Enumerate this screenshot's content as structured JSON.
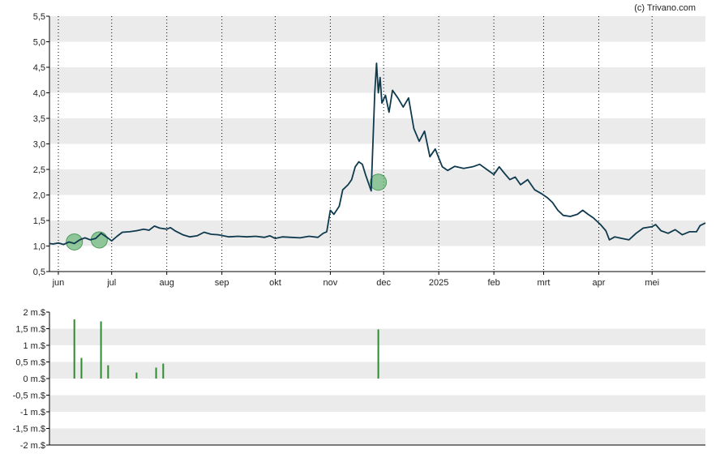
{
  "copyright": "(c) Trivano.com",
  "colors": {
    "band": "#ebebeb",
    "price_line": "#0f3a4e",
    "marker": "#6fba7d",
    "volume_bar": "#2e8b2e",
    "axis": "#000000",
    "month_grid": "#000000"
  },
  "chart_data": [
    {
      "type": "line",
      "name": "price",
      "ylim": [
        0.5,
        5.5
      ],
      "y_ticks": [
        0.5,
        1.0,
        1.5,
        2.0,
        2.5,
        3.0,
        3.5,
        4.0,
        4.5,
        5.0,
        5.5
      ],
      "y_tick_labels": [
        "0,5",
        "1,0",
        "1,5",
        "2,0",
        "2,5",
        "3,0",
        "3,5",
        "4,0",
        "4,5",
        "5,0",
        "5,5"
      ],
      "x_start": "2024-05-27",
      "x_end": "2025-05-31",
      "x_ticks": [
        "2024-06-01",
        "2024-07-01",
        "2024-08-01",
        "2024-09-01",
        "2024-10-01",
        "2024-11-01",
        "2024-12-01",
        "2025-01-01",
        "2025-02-01",
        "2025-03-01",
        "2025-04-01",
        "2025-05-01"
      ],
      "x_tick_labels": [
        "jun",
        "jul",
        "aug",
        "sep",
        "okt",
        "nov",
        "dec",
        "2025",
        "feb",
        "mrt",
        "apr",
        "mei"
      ],
      "grid": "alternating horizontal bands, dotted vertical month lines",
      "points": [
        [
          "2024-05-27",
          1.05
        ],
        [
          "2024-05-29",
          1.04
        ],
        [
          "2024-06-01",
          1.06
        ],
        [
          "2024-06-04",
          1.03
        ],
        [
          "2024-06-07",
          1.08
        ],
        [
          "2024-06-10",
          1.05
        ],
        [
          "2024-06-13",
          1.12
        ],
        [
          "2024-06-16",
          1.16
        ],
        [
          "2024-06-19",
          1.12
        ],
        [
          "2024-06-22",
          1.15
        ],
        [
          "2024-06-25",
          1.25
        ],
        [
          "2024-06-28",
          1.18
        ],
        [
          "2024-07-01",
          1.1
        ],
        [
          "2024-07-04",
          1.19
        ],
        [
          "2024-07-07",
          1.27
        ],
        [
          "2024-07-11",
          1.28
        ],
        [
          "2024-07-15",
          1.3
        ],
        [
          "2024-07-19",
          1.33
        ],
        [
          "2024-07-22",
          1.31
        ],
        [
          "2024-07-25",
          1.39
        ],
        [
          "2024-07-28",
          1.35
        ],
        [
          "2024-08-01",
          1.33
        ],
        [
          "2024-08-03",
          1.36
        ],
        [
          "2024-08-06",
          1.29
        ],
        [
          "2024-08-10",
          1.22
        ],
        [
          "2024-08-14",
          1.18
        ],
        [
          "2024-08-18",
          1.2
        ],
        [
          "2024-08-22",
          1.27
        ],
        [
          "2024-08-26",
          1.23
        ],
        [
          "2024-08-30",
          1.22
        ],
        [
          "2024-09-05",
          1.18
        ],
        [
          "2024-09-10",
          1.19
        ],
        [
          "2024-09-15",
          1.18
        ],
        [
          "2024-09-20",
          1.19
        ],
        [
          "2024-09-25",
          1.17
        ],
        [
          "2024-09-28",
          1.2
        ],
        [
          "2024-10-01",
          1.15
        ],
        [
          "2024-10-05",
          1.18
        ],
        [
          "2024-10-10",
          1.17
        ],
        [
          "2024-10-15",
          1.16
        ],
        [
          "2024-10-20",
          1.19
        ],
        [
          "2024-10-25",
          1.17
        ],
        [
          "2024-10-28",
          1.25
        ],
        [
          "2024-10-30",
          1.28
        ],
        [
          "2024-11-01",
          1.7
        ],
        [
          "2024-11-03",
          1.62
        ],
        [
          "2024-11-06",
          1.78
        ],
        [
          "2024-11-08",
          2.1
        ],
        [
          "2024-11-11",
          2.2
        ],
        [
          "2024-11-13",
          2.3
        ],
        [
          "2024-11-15",
          2.55
        ],
        [
          "2024-11-17",
          2.65
        ],
        [
          "2024-11-19",
          2.6
        ],
        [
          "2024-11-21",
          2.38
        ],
        [
          "2024-11-24",
          2.08
        ],
        [
          "2024-11-26",
          4.0
        ],
        [
          "2024-11-27",
          4.58
        ],
        [
          "2024-11-28",
          4.0
        ],
        [
          "2024-11-29",
          4.3
        ],
        [
          "2024-11-30",
          3.8
        ],
        [
          "2024-12-02",
          3.95
        ],
        [
          "2024-12-04",
          3.62
        ],
        [
          "2024-12-06",
          4.05
        ],
        [
          "2024-12-09",
          3.9
        ],
        [
          "2024-12-12",
          3.72
        ],
        [
          "2024-12-15",
          3.9
        ],
        [
          "2024-12-18",
          3.3
        ],
        [
          "2024-12-21",
          3.05
        ],
        [
          "2024-12-24",
          3.25
        ],
        [
          "2024-12-27",
          2.75
        ],
        [
          "2024-12-30",
          2.9
        ],
        [
          "2025-01-03",
          2.55
        ],
        [
          "2025-01-06",
          2.48
        ],
        [
          "2025-01-10",
          2.56
        ],
        [
          "2025-01-15",
          2.52
        ],
        [
          "2025-01-20",
          2.55
        ],
        [
          "2025-01-24",
          2.6
        ],
        [
          "2025-01-28",
          2.5
        ],
        [
          "2025-02-01",
          2.4
        ],
        [
          "2025-02-04",
          2.55
        ],
        [
          "2025-02-07",
          2.42
        ],
        [
          "2025-02-10",
          2.3
        ],
        [
          "2025-02-13",
          2.35
        ],
        [
          "2025-02-16",
          2.2
        ],
        [
          "2025-02-20",
          2.3
        ],
        [
          "2025-02-24",
          2.1
        ],
        [
          "2025-02-28",
          2.02
        ],
        [
          "2025-03-03",
          1.95
        ],
        [
          "2025-03-06",
          1.85
        ],
        [
          "2025-03-09",
          1.7
        ],
        [
          "2025-03-12",
          1.6
        ],
        [
          "2025-03-16",
          1.58
        ],
        [
          "2025-03-20",
          1.62
        ],
        [
          "2025-03-23",
          1.7
        ],
        [
          "2025-03-26",
          1.62
        ],
        [
          "2025-03-29",
          1.55
        ],
        [
          "2025-04-02",
          1.42
        ],
        [
          "2025-04-05",
          1.3
        ],
        [
          "2025-04-07",
          1.12
        ],
        [
          "2025-04-10",
          1.18
        ],
        [
          "2025-04-14",
          1.15
        ],
        [
          "2025-04-18",
          1.12
        ],
        [
          "2025-04-22",
          1.25
        ],
        [
          "2025-04-26",
          1.35
        ],
        [
          "2025-05-01",
          1.38
        ],
        [
          "2025-05-03",
          1.42
        ],
        [
          "2025-05-06",
          1.3
        ],
        [
          "2025-05-10",
          1.25
        ],
        [
          "2025-05-14",
          1.32
        ],
        [
          "2025-05-18",
          1.22
        ],
        [
          "2025-05-22",
          1.28
        ],
        [
          "2025-05-26",
          1.28
        ],
        [
          "2025-05-28",
          1.4
        ],
        [
          "2025-05-31",
          1.45
        ]
      ],
      "markers": [
        [
          "2024-06-10",
          1.08
        ],
        [
          "2024-06-24",
          1.12
        ],
        [
          "2024-11-28",
          2.25
        ]
      ]
    },
    {
      "type": "bar",
      "name": "volume",
      "ylim": [
        -2000000,
        2000000
      ],
      "y_ticks": [
        2000000,
        1500000,
        1000000,
        500000,
        0,
        -500000,
        -1000000,
        -1500000,
        -2000000
      ],
      "y_tick_labels": [
        "2 m.$",
        "1,5 m.$",
        "1 m.$",
        "0,5 m.$",
        "0 m.$",
        "-0,5 m.$",
        "-1 m.$",
        "-1,5 m.$",
        "-2 m.$"
      ],
      "grid": "alternating horizontal bands",
      "bars": [
        [
          "2024-06-10",
          1780000
        ],
        [
          "2024-06-14",
          620000
        ],
        [
          "2024-06-25",
          1720000
        ],
        [
          "2024-06-29",
          400000
        ],
        [
          "2024-07-15",
          180000
        ],
        [
          "2024-07-26",
          330000
        ],
        [
          "2024-07-30",
          450000
        ],
        [
          "2024-11-28",
          1480000
        ]
      ]
    }
  ]
}
